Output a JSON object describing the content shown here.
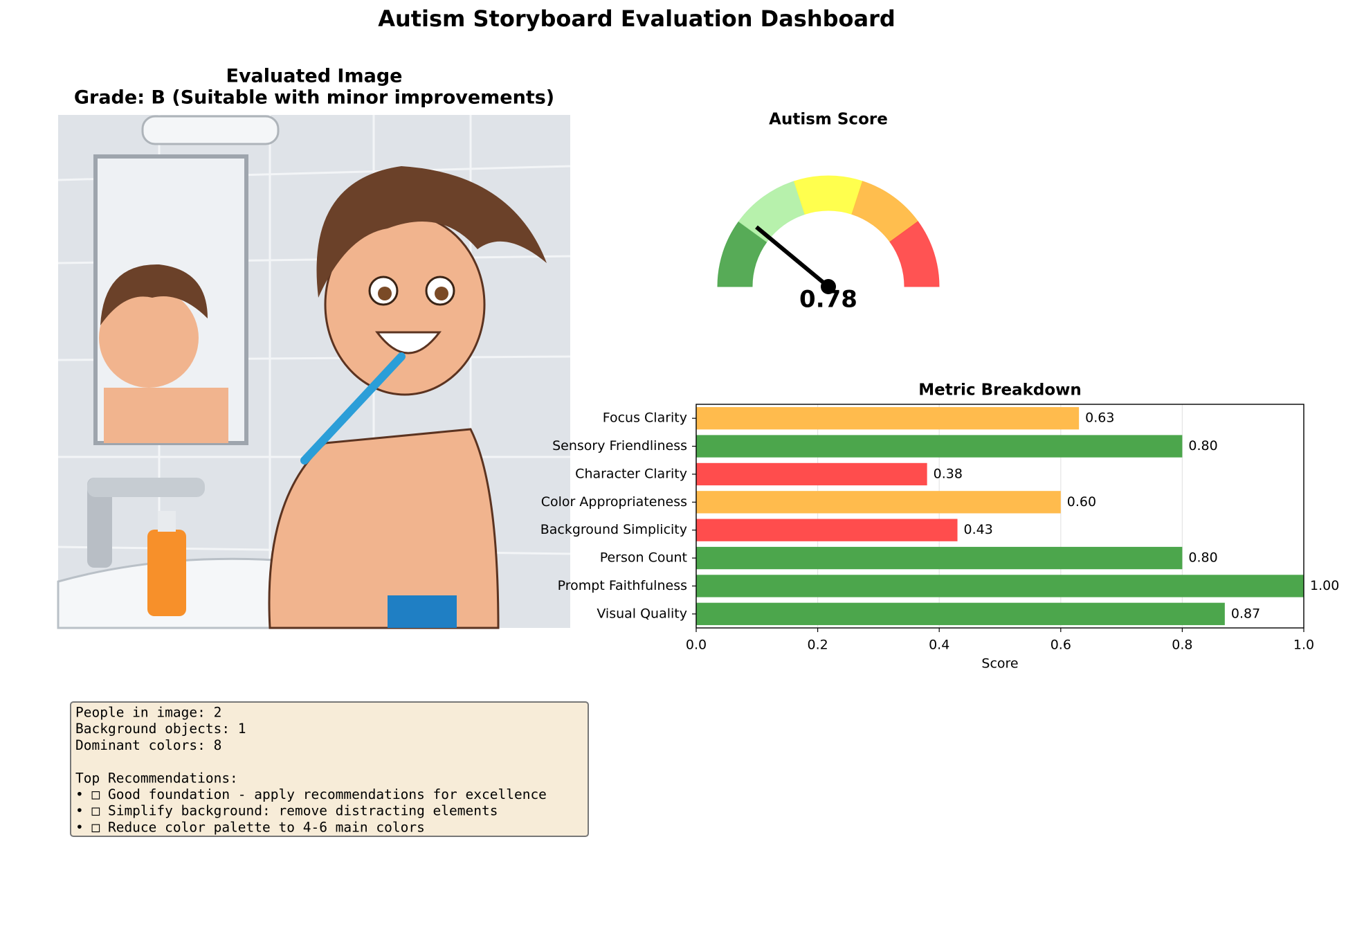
{
  "title": "Autism Storyboard Evaluation Dashboard",
  "image_panel": {
    "title": "Evaluated Image",
    "grade": "Grade: B (Suitable with minor improvements)"
  },
  "chart_data": [
    {
      "type": "gauge",
      "title": "Autism Score",
      "value": 0.78,
      "band_colors": [
        "#4ea64e",
        "#b3f0a8",
        "#ffff44",
        "#ffbb44",
        "#ff4a4a"
      ],
      "needle_color": "#000000"
    },
    {
      "type": "bar",
      "orientation": "horizontal",
      "title": "Metric Breakdown",
      "xlabel": "Score",
      "categories": [
        "Focus Clarity",
        "Sensory Friendliness",
        "Character Clarity",
        "Color Appropriateness",
        "Background Simplicity",
        "Person Count",
        "Prompt Faithfulness",
        "Visual Quality"
      ],
      "values": [
        0.63,
        0.8,
        0.38,
        0.6,
        0.43,
        0.8,
        1.0,
        0.87
      ],
      "value_labels": [
        "0.63",
        "0.80",
        "0.38",
        "0.60",
        "0.43",
        "0.80",
        "1.00",
        "0.87"
      ],
      "colors": [
        "#ffbb4d",
        "#4ca64c",
        "#ff4d4d",
        "#ffbb4d",
        "#ff4d4d",
        "#4ca64c",
        "#4ca64c",
        "#4ca64c"
      ],
      "xlim": [
        0,
        1
      ],
      "xticks": [
        {
          "value": 0,
          "label": "0.0"
        },
        {
          "value": 0.2,
          "label": "0.2"
        },
        {
          "value": 0.4,
          "label": "0.4"
        },
        {
          "value": 0.6,
          "label": "0.6"
        },
        {
          "value": 0.8,
          "label": "0.8"
        },
        {
          "value": 1,
          "label": "1.0"
        }
      ],
      "grid": true
    }
  ],
  "info_box": {
    "stats": [
      "People in image: 2",
      "Background objects: 1",
      "Dominant colors: 8"
    ],
    "heading": "Top Recommendations:",
    "items": [
      "• □ Good foundation - apply recommendations for excellence",
      "• □ Simplify background: remove distracting elements",
      "• □ Reduce color palette to 4-6 main colors"
    ]
  }
}
